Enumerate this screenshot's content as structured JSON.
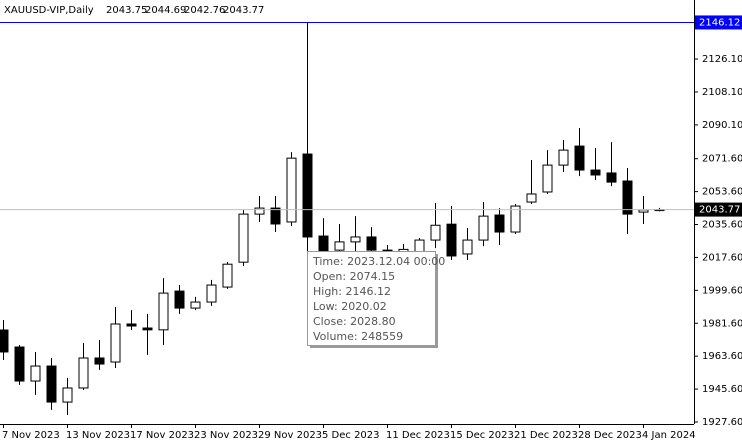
{
  "chart_data": {
    "type": "candlestick",
    "title": "XAUUSD-VIP,Daily",
    "categories": [
      "7 Nov 2023",
      null,
      null,
      null,
      "13 Nov 2023",
      null,
      null,
      null,
      "17 Nov 2023",
      null,
      null,
      null,
      "23 Nov 2023",
      null,
      null,
      null,
      "29 Nov 2023",
      null,
      null,
      null,
      "5 Dec 2023",
      null,
      null,
      null,
      "11 Dec 2023",
      null,
      null,
      null,
      "15 Dec 2023",
      null,
      null,
      null,
      "21 Dec 2023",
      null,
      null,
      null,
      "28 Dec 2023",
      null,
      null,
      null,
      "4 Jan 2024",
      null
    ],
    "open": [
      1977.9,
      1968.6,
      1950.0,
      1958.2,
      1938.5,
      1946.2,
      1962.6,
      1960.4,
      1981.2,
      1979.0,
      1978.0,
      1999.2,
      1989.9,
      1993.2,
      2001.4,
      2015.0,
      2041.3,
      2044.6,
      2037.0,
      2074.15,
      2029.3,
      2021.6,
      2026.1,
      2028.8,
      2021.6,
      2019.0,
      2018.4,
      2027.1,
      2035.8,
      2019.5,
      2027.1,
      2040.8,
      2031.5,
      2047.9,
      2053.4,
      2068.1,
      2078.5,
      2065.4,
      2063.8,
      2059.4,
      2042.4,
      2043.75
    ],
    "high": [
      1983.4,
      1969.7,
      1965.9,
      1962.6,
      1951.7,
      1970.8,
      1972.4,
      1990.5,
      1988.8,
      1986.7,
      2006.3,
      2002.5,
      1996.0,
      2005.3,
      2015.1,
      2043.5,
      2051.2,
      2051.2,
      2075.2,
      2146.12,
      2039.1,
      2035.9,
      2040.2,
      2034.2,
      2024.4,
      2025.0,
      2028.2,
      2047.4,
      2045.7,
      2033.7,
      2047.9,
      2044.6,
      2046.8,
      2070.9,
      2076.3,
      2081.8,
      2088.4,
      2077.4,
      2080.7,
      2066.5,
      2051.2,
      2044.69
    ],
    "low": [
      1961.5,
      1947.9,
      1942.4,
      1934.2,
      1931.4,
      1945.1,
      1956.1,
      1957.1,
      1977.9,
      1964.3,
      1969.7,
      1986.7,
      1988.8,
      1991.1,
      2000.4,
      2012.9,
      2037.0,
      2031.5,
      2034.8,
      2020.02,
      2016.2,
      2016.2,
      2018.9,
      2018.4,
      2013.0,
      2015.0,
      2015.1,
      2022.7,
      2016.2,
      2016.2,
      2023.8,
      2024.4,
      2030.4,
      2046.8,
      2052.3,
      2064.3,
      2062.1,
      2059.9,
      2056.6,
      2030.4,
      2035.9,
      2042.76
    ],
    "close": [
      1965.9,
      1950.0,
      1958.2,
      1938.5,
      1946.2,
      1962.6,
      1959.3,
      1981.2,
      1980.1,
      1978.0,
      1998.1,
      1989.9,
      1993.2,
      2002.5,
      2013.9,
      2041.3,
      2044.6,
      2035.9,
      2071.9,
      2028.8,
      2020.6,
      2026.1,
      2028.8,
      2021.6,
      2019.0,
      2022.0,
      2027.1,
      2035.2,
      2018.4,
      2027.1,
      2040.2,
      2031.5,
      2045.7,
      2052.3,
      2068.1,
      2076.3,
      2065.4,
      2062.7,
      2058.8,
      2041.3,
      2043.6,
      2043.77
    ],
    "ylim": [
      1926.5,
      2158.4
    ],
    "yticks": [
      {
        "value": 2126.1,
        "label": "2126.10"
      },
      {
        "value": 2108.1,
        "label": "2108.10"
      },
      {
        "value": 2090.1,
        "label": "2090.10"
      },
      {
        "value": 2071.6,
        "label": "2071.60"
      },
      {
        "value": 2053.6,
        "label": "2053.60"
      },
      {
        "value": 2035.6,
        "label": "2035.60"
      },
      {
        "value": 2017.6,
        "label": "2017.60"
      },
      {
        "value": 1999.6,
        "label": "1999.60"
      },
      {
        "value": 1981.6,
        "label": "1981.60"
      },
      {
        "value": 1963.6,
        "label": "1963.60"
      },
      {
        "value": 1945.6,
        "label": "1945.60"
      },
      {
        "value": 1927.6,
        "label": "1927.60"
      }
    ],
    "grid": false,
    "up_color": "#ffffff",
    "down_color": "#000000",
    "high_line_color": "#0000ff",
    "price_line_color": "#c0c0c0",
    "tooltip": {
      "candle": 19,
      "lines": [
        "Time: 2023.12.04 00:00",
        "Open: 2074.15",
        "High: 2146.12",
        "Low:  2020.02",
        "Close: 2028.80",
        "Volume: 248559"
      ]
    }
  }
}
